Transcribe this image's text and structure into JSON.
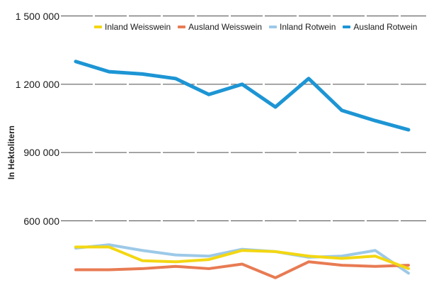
{
  "chart_data": {
    "type": "line",
    "title": "",
    "ylabel": "In Hektolitern",
    "xlabel": "",
    "x_tick_labels_visible": false,
    "n_points": 11,
    "grid": "horizontal-dashed",
    "legend_position": "top",
    "ylim_gridlines": [
      600000,
      1500000
    ],
    "yticks": [
      1500000,
      1200000,
      900000,
      600000
    ],
    "ytick_labels": [
      "1 500 000",
      "1 200 000",
      "900 000",
      "600 000"
    ],
    "series": [
      {
        "name": "Inland Weisswein",
        "color": "#F3D712",
        "values": [
          485000,
          485000,
          425000,
          420000,
          430000,
          470000,
          465000,
          445000,
          435000,
          445000,
          390000
        ]
      },
      {
        "name": "Ausland Weisswein",
        "color": "#E87B53",
        "values": [
          385000,
          385000,
          390000,
          400000,
          390000,
          410000,
          350000,
          420000,
          405000,
          400000,
          405000
        ]
      },
      {
        "name": "Inland Rotwein",
        "color": "#9CC9E8",
        "values": [
          480000,
          495000,
          470000,
          450000,
          445000,
          475000,
          465000,
          440000,
          445000,
          470000,
          370000
        ]
      },
      {
        "name": "Ausland Rotwein",
        "color": "#1D95D4",
        "values": [
          1300000,
          1255000,
          1245000,
          1225000,
          1155000,
          1200000,
          1100000,
          1225000,
          1085000,
          1040000,
          1000000
        ]
      }
    ]
  },
  "colors": {
    "grid": "#4D4D4D",
    "text": "#1A1A1A",
    "background": "#FFFFFF"
  }
}
